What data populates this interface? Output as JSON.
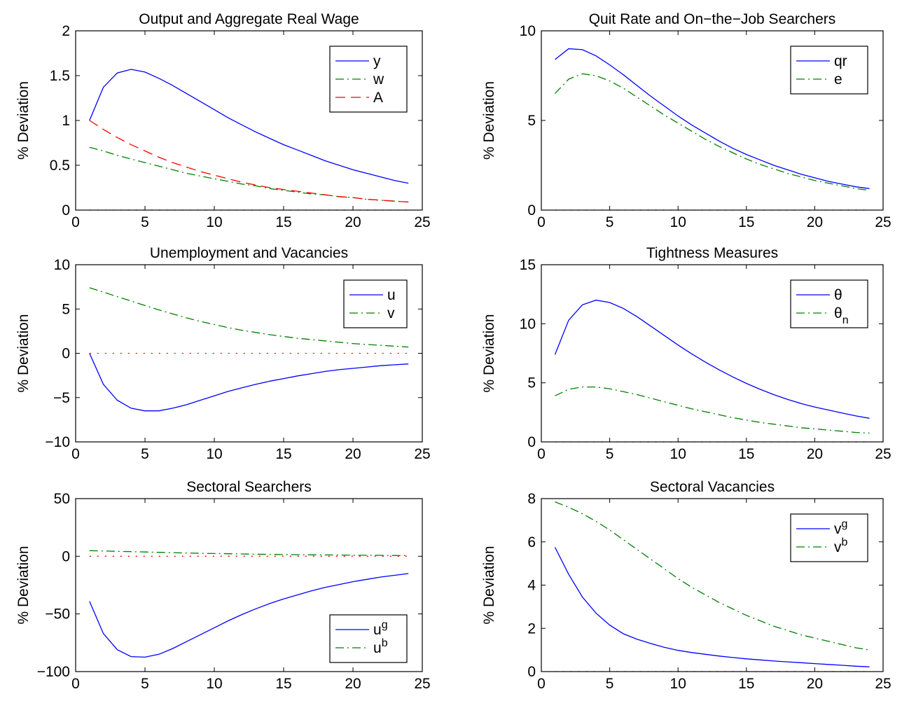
{
  "colors": {
    "blue": "#0000ff",
    "green": "#007f00",
    "red": "#ff0000",
    "axis": "#000000",
    "background": "#ffffff"
  },
  "chart_data": [
    {
      "type": "line",
      "title": "Output and Aggregate Real Wage",
      "xlabel": "",
      "ylabel": "% Deviation",
      "xlim": [
        0,
        25
      ],
      "ylim": [
        0,
        2
      ],
      "xticks": [
        0,
        5,
        10,
        15,
        20,
        25
      ],
      "yticks": [
        0,
        0.5,
        1,
        1.5,
        2
      ],
      "legend_position": "top-right",
      "zero_line": true,
      "x": [
        1,
        2,
        3,
        4,
        5,
        6,
        7,
        8,
        9,
        10,
        11,
        12,
        13,
        14,
        15,
        16,
        17,
        18,
        19,
        20,
        21,
        22,
        23,
        24
      ],
      "series": [
        {
          "name": "y",
          "color": "blue",
          "dash": "solid",
          "values": [
            1.0,
            1.37,
            1.53,
            1.57,
            1.54,
            1.47,
            1.39,
            1.3,
            1.21,
            1.12,
            1.03,
            0.95,
            0.87,
            0.8,
            0.73,
            0.67,
            0.61,
            0.55,
            0.5,
            0.45,
            0.41,
            0.37,
            0.33,
            0.3
          ]
        },
        {
          "name": "w",
          "color": "green",
          "dash": "dashdot",
          "values": [
            0.7,
            0.66,
            0.61,
            0.57,
            0.53,
            0.49,
            0.45,
            0.41,
            0.38,
            0.35,
            0.32,
            0.29,
            0.27,
            0.24,
            0.22,
            0.2,
            0.18,
            0.17,
            0.15,
            0.14,
            0.12,
            0.11,
            0.1,
            0.09
          ]
        },
        {
          "name": "A",
          "color": "red",
          "dash": "dashed",
          "values": [
            1.0,
            0.9,
            0.81,
            0.73,
            0.66,
            0.59,
            0.53,
            0.48,
            0.43,
            0.39,
            0.35,
            0.31,
            0.28,
            0.25,
            0.23,
            0.21,
            0.19,
            0.17,
            0.15,
            0.14,
            0.12,
            0.11,
            0.1,
            0.09
          ]
        }
      ],
      "legend": [
        {
          "label": "y",
          "sup": "",
          "sub": "",
          "series": 0
        },
        {
          "label": "w",
          "sup": "",
          "sub": "",
          "series": 1
        },
        {
          "label": "A",
          "sup": "",
          "sub": "",
          "series": 2
        }
      ]
    },
    {
      "type": "line",
      "title": "Quit Rate and On−the−Job Searchers",
      "xlabel": "",
      "ylabel": "% Deviation",
      "xlim": [
        0,
        25
      ],
      "ylim": [
        0,
        10
      ],
      "xticks": [
        0,
        5,
        10,
        15,
        20,
        25
      ],
      "yticks": [
        0,
        5,
        10
      ],
      "legend_position": "top-right",
      "zero_line": true,
      "x": [
        1,
        2,
        3,
        4,
        5,
        6,
        7,
        8,
        9,
        10,
        11,
        12,
        13,
        14,
        15,
        16,
        17,
        18,
        19,
        20,
        21,
        22,
        23,
        24
      ],
      "series": [
        {
          "name": "qr",
          "color": "blue",
          "dash": "solid",
          "values": [
            8.4,
            9.0,
            8.95,
            8.6,
            8.1,
            7.55,
            6.95,
            6.35,
            5.8,
            5.25,
            4.75,
            4.3,
            3.85,
            3.45,
            3.1,
            2.8,
            2.5,
            2.25,
            2.0,
            1.8,
            1.6,
            1.45,
            1.3,
            1.2
          ]
        },
        {
          "name": "e",
          "color": "green",
          "dash": "dashdot",
          "values": [
            6.5,
            7.3,
            7.6,
            7.5,
            7.2,
            6.8,
            6.3,
            5.8,
            5.3,
            4.85,
            4.4,
            3.95,
            3.55,
            3.2,
            2.85,
            2.55,
            2.3,
            2.05,
            1.85,
            1.65,
            1.5,
            1.35,
            1.2,
            1.1
          ]
        }
      ],
      "legend": [
        {
          "label": "qr",
          "sup": "",
          "sub": "",
          "series": 0
        },
        {
          "label": "e",
          "sup": "",
          "sub": "",
          "series": 1
        }
      ]
    },
    {
      "type": "line",
      "title": "Unemployment and Vacancies",
      "xlabel": "",
      "ylabel": "% Deviation",
      "xlim": [
        0,
        25
      ],
      "ylim": [
        -10,
        10
      ],
      "xticks": [
        0,
        5,
        10,
        15,
        20,
        25
      ],
      "yticks": [
        -10,
        -5,
        0,
        5,
        10
      ],
      "legend_position": "top-right",
      "zero_line": true,
      "x": [
        1,
        2,
        3,
        4,
        5,
        6,
        7,
        8,
        9,
        10,
        11,
        12,
        13,
        14,
        15,
        16,
        17,
        18,
        19,
        20,
        21,
        22,
        23,
        24
      ],
      "series": [
        {
          "name": "u",
          "color": "blue",
          "dash": "solid",
          "values": [
            0,
            -3.5,
            -5.3,
            -6.2,
            -6.5,
            -6.5,
            -6.2,
            -5.8,
            -5.3,
            -4.8,
            -4.3,
            -3.9,
            -3.5,
            -3.15,
            -2.85,
            -2.55,
            -2.3,
            -2.05,
            -1.85,
            -1.7,
            -1.55,
            -1.4,
            -1.3,
            -1.2
          ]
        },
        {
          "name": "v",
          "color": "green",
          "dash": "dashdot",
          "values": [
            7.4,
            6.9,
            6.4,
            5.9,
            5.4,
            4.9,
            4.45,
            4.0,
            3.6,
            3.25,
            2.9,
            2.6,
            2.35,
            2.1,
            1.9,
            1.7,
            1.55,
            1.4,
            1.25,
            1.1,
            1.0,
            0.9,
            0.8,
            0.7
          ]
        }
      ],
      "legend": [
        {
          "label": "u",
          "sup": "",
          "sub": "",
          "series": 0
        },
        {
          "label": "v",
          "sup": "",
          "sub": "",
          "series": 1
        }
      ]
    },
    {
      "type": "line",
      "title": "Tightness Measures",
      "xlabel": "",
      "ylabel": "% Deviation",
      "xlim": [
        0,
        25
      ],
      "ylim": [
        0,
        15
      ],
      "xticks": [
        0,
        5,
        10,
        15,
        20,
        25
      ],
      "yticks": [
        0,
        5,
        10,
        15
      ],
      "legend_position": "top-right",
      "zero_line": true,
      "x": [
        1,
        2,
        3,
        4,
        5,
        6,
        7,
        8,
        9,
        10,
        11,
        12,
        13,
        14,
        15,
        16,
        17,
        18,
        19,
        20,
        21,
        22,
        23,
        24
      ],
      "series": [
        {
          "name": "θ",
          "color": "blue",
          "dash": "solid",
          "values": [
            7.4,
            10.3,
            11.6,
            12.0,
            11.8,
            11.3,
            10.6,
            9.8,
            9.0,
            8.2,
            7.45,
            6.75,
            6.1,
            5.5,
            4.95,
            4.45,
            4.0,
            3.6,
            3.25,
            2.95,
            2.7,
            2.45,
            2.2,
            2.0
          ]
        },
        {
          "name": "θn",
          "color": "green",
          "dash": "dashdot",
          "values": [
            3.9,
            4.45,
            4.65,
            4.65,
            4.5,
            4.25,
            4.0,
            3.7,
            3.4,
            3.1,
            2.8,
            2.55,
            2.3,
            2.05,
            1.85,
            1.65,
            1.5,
            1.35,
            1.2,
            1.1,
            1.0,
            0.9,
            0.8,
            0.75
          ]
        }
      ],
      "legend": [
        {
          "label": "θ",
          "sup": "",
          "sub": "",
          "series": 0
        },
        {
          "label": "θ",
          "sup": "",
          "sub": "n",
          "series": 1
        }
      ]
    },
    {
      "type": "line",
      "title": "Sectoral Searchers",
      "xlabel": "",
      "ylabel": "% Deviation",
      "xlim": [
        0,
        25
      ],
      "ylim": [
        -100,
        50
      ],
      "xticks": [
        0,
        5,
        10,
        15,
        20,
        25
      ],
      "yticks": [
        -100,
        -50,
        0,
        50
      ],
      "legend_position": "bottom-right",
      "zero_line": true,
      "x": [
        1,
        2,
        3,
        4,
        5,
        6,
        7,
        8,
        9,
        10,
        11,
        12,
        13,
        14,
        15,
        16,
        17,
        18,
        19,
        20,
        21,
        22,
        23,
        24
      ],
      "series": [
        {
          "name": "ug",
          "color": "blue",
          "dash": "solid",
          "values": [
            -39,
            -67,
            -81,
            -87,
            -87.5,
            -85,
            -80,
            -74,
            -68,
            -62,
            -56,
            -50.5,
            -45.5,
            -41,
            -37,
            -33.5,
            -30,
            -27,
            -24.5,
            -22,
            -20,
            -18,
            -16.5,
            -15
          ]
        },
        {
          "name": "ub",
          "color": "green",
          "dash": "dashdot",
          "values": [
            4.9,
            4.6,
            4.3,
            4.0,
            3.7,
            3.4,
            3.1,
            2.85,
            2.6,
            2.4,
            2.2,
            2.0,
            1.8,
            1.65,
            1.5,
            1.35,
            1.25,
            1.15,
            1.05,
            0.95,
            0.85,
            0.8,
            0.7,
            0.65
          ]
        }
      ],
      "legend": [
        {
          "label": "u",
          "sup": "g",
          "sub": "",
          "series": 0
        },
        {
          "label": "u",
          "sup": "b",
          "sub": "",
          "series": 1
        }
      ]
    },
    {
      "type": "line",
      "title": "Sectoral Vacancies",
      "xlabel": "",
      "ylabel": "% Deviation",
      "xlim": [
        0,
        25
      ],
      "ylim": [
        0,
        8
      ],
      "xticks": [
        0,
        5,
        10,
        15,
        20,
        25
      ],
      "yticks": [
        0,
        2,
        4,
        6,
        8
      ],
      "legend_position": "top-right",
      "zero_line": true,
      "x": [
        1,
        2,
        3,
        4,
        5,
        6,
        7,
        8,
        9,
        10,
        11,
        12,
        13,
        14,
        15,
        16,
        17,
        18,
        19,
        20,
        21,
        22,
        23,
        24
      ],
      "series": [
        {
          "name": "vg",
          "color": "blue",
          "dash": "solid",
          "values": [
            5.75,
            4.5,
            3.45,
            2.7,
            2.15,
            1.75,
            1.5,
            1.3,
            1.12,
            0.98,
            0.88,
            0.8,
            0.72,
            0.65,
            0.59,
            0.54,
            0.49,
            0.45,
            0.41,
            0.37,
            0.33,
            0.29,
            0.25,
            0.22
          ]
        },
        {
          "name": "vb",
          "color": "green",
          "dash": "dashdot",
          "values": [
            7.85,
            7.6,
            7.3,
            6.95,
            6.55,
            6.1,
            5.65,
            5.2,
            4.75,
            4.3,
            3.9,
            3.55,
            3.2,
            2.9,
            2.6,
            2.35,
            2.1,
            1.9,
            1.7,
            1.55,
            1.4,
            1.25,
            1.1,
            1.0
          ]
        }
      ],
      "legend": [
        {
          "label": "v",
          "sup": "g",
          "sub": "",
          "series": 0
        },
        {
          "label": "v",
          "sup": "b",
          "sub": "",
          "series": 1
        }
      ]
    }
  ]
}
